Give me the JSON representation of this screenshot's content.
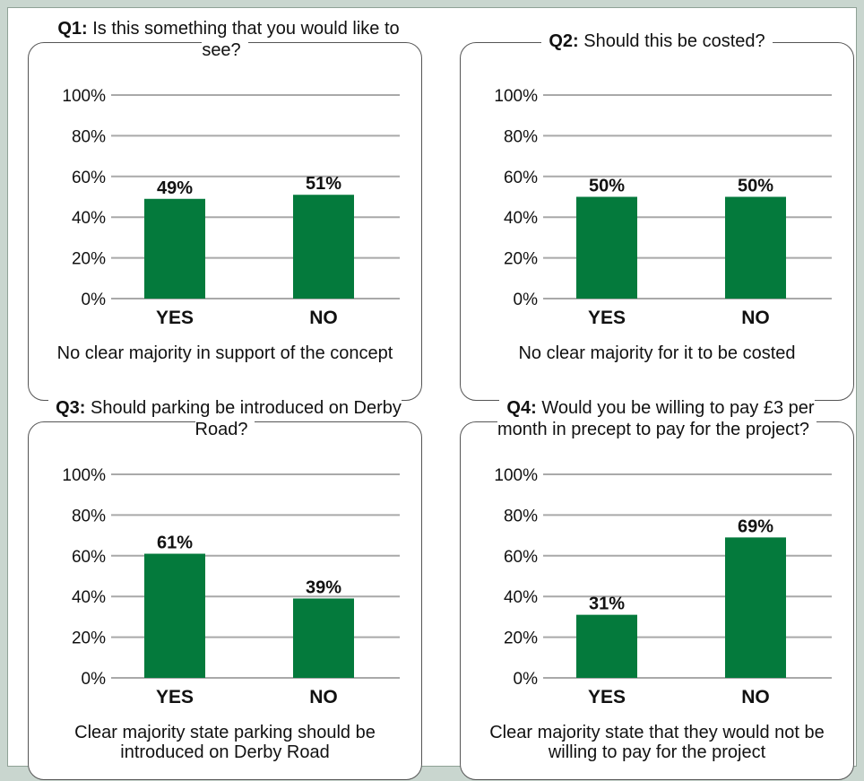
{
  "chart_data": [
    {
      "type": "bar",
      "question_id": "Q1:",
      "question_text": "Is this something that you would like to see?",
      "categories": [
        "YES",
        "NO"
      ],
      "values": [
        49,
        51
      ],
      "value_labels": [
        "49%",
        "51%"
      ],
      "ylim": [
        0,
        100
      ],
      "yticks": [
        "0%",
        "20%",
        "40%",
        "60%",
        "80%",
        "100%"
      ],
      "caption": "No clear majority in support of the concept"
    },
    {
      "type": "bar",
      "question_id": "Q2:",
      "question_text": "Should this be costed?",
      "categories": [
        "YES",
        "NO"
      ],
      "values": [
        50,
        50
      ],
      "value_labels": [
        "50%",
        "50%"
      ],
      "ylim": [
        0,
        100
      ],
      "yticks": [
        "0%",
        "20%",
        "40%",
        "60%",
        "80%",
        "100%"
      ],
      "caption": "No clear majority for it to be costed"
    },
    {
      "type": "bar",
      "question_id": "Q3:",
      "question_text": "Should parking be introduced on Derby Road?",
      "categories": [
        "YES",
        "NO"
      ],
      "values": [
        61,
        39
      ],
      "value_labels": [
        "61%",
        "39%"
      ],
      "ylim": [
        0,
        100
      ],
      "yticks": [
        "0%",
        "20%",
        "40%",
        "60%",
        "80%",
        "100%"
      ],
      "caption": "Clear majority state parking should be introduced on Derby Road"
    },
    {
      "type": "bar",
      "question_id": "Q4:",
      "question_text": "Would you be willing to pay £3 per month in precept to pay for the project?",
      "categories": [
        "YES",
        "NO"
      ],
      "values": [
        31,
        69
      ],
      "value_labels": [
        "31%",
        "69%"
      ],
      "ylim": [
        0,
        100
      ],
      "yticks": [
        "0%",
        "20%",
        "40%",
        "60%",
        "80%",
        "100%"
      ],
      "caption": "Clear majority state that they would not be willing to pay for the project"
    }
  ],
  "colors": {
    "bar": "#047a3c",
    "grid": "#a9a9a9",
    "border": "#555555"
  }
}
